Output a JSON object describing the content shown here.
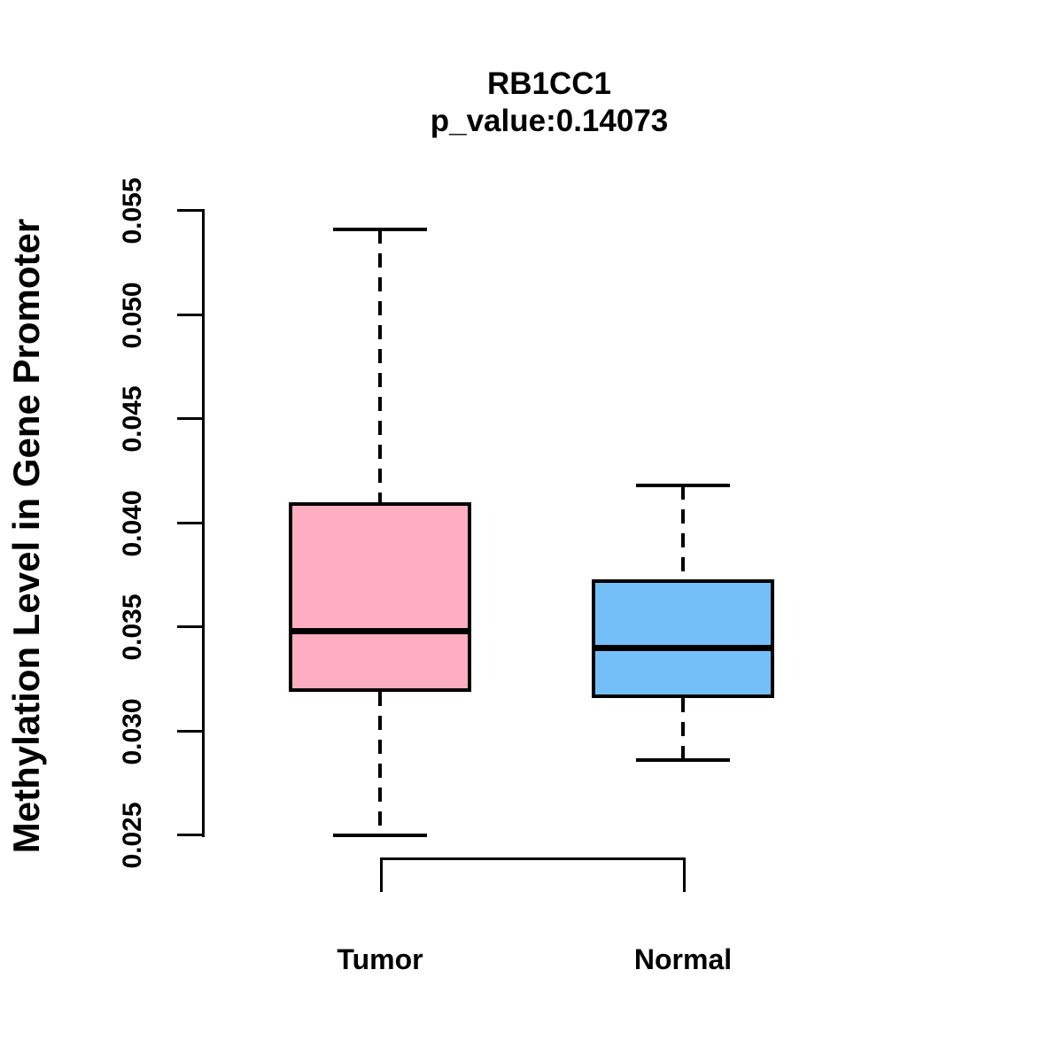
{
  "title": "RB1CC1",
  "subtitle": "p_value:0.14073",
  "chart_data": {
    "type": "boxplot",
    "title": "RB1CC1",
    "subtitle": "p_value:0.14073",
    "xlabel": "",
    "ylabel": "Methylation Level in Gene Promoter",
    "ylim": [
      0.025,
      0.055
    ],
    "y_ticks": [
      0.025,
      0.03,
      0.035,
      0.04,
      0.045,
      0.05,
      0.055
    ],
    "y_tick_labels": [
      "0.025",
      "0.030",
      "0.035",
      "0.040",
      "0.045",
      "0.050",
      "0.055"
    ],
    "grid": "off",
    "legend": "none",
    "groups": [
      {
        "label": "Tumor",
        "fill_color": "#FFAEC1",
        "whisker_low": 0.025,
        "q1": 0.0319,
        "median": 0.0348,
        "q3": 0.041,
        "whisker_high": 0.0541
      },
      {
        "label": "Normal",
        "fill_color": "#74BFF7",
        "whisker_low": 0.0286,
        "q1": 0.0316,
        "median": 0.034,
        "q3": 0.0373,
        "whisker_high": 0.0418
      }
    ],
    "comparison_bracket": {
      "between": [
        "Tumor",
        "Normal"
      ]
    },
    "colors": {
      "stroke": "#000000",
      "background": "#FFFFFF"
    }
  }
}
